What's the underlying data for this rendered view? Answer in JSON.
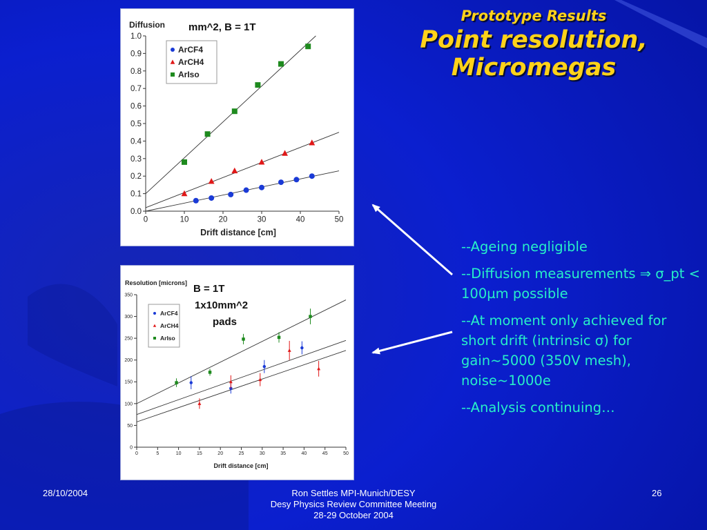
{
  "slide": {
    "title_line1": "Prototype Results",
    "title_line2": "Point resolution,",
    "title_line3": "Micromegas",
    "bullets": [
      "--Ageing negligible",
      "--Diffusion measurements ⇒ σ_pt < 100µm possible",
      "--At moment only achieved for short drift (intrinsic σ) for gain~5000 (350V mesh), noise~1000e",
      "--Analysis continuing…"
    ],
    "footer": {
      "date": "28/10/2004",
      "center_line1": "Ron Settles  MPI-Munich/DESY",
      "center_line2": "Desy Physics Review Committee Meeting",
      "center_line3": "28-29 October 2004",
      "page": "26"
    }
  },
  "colors": {
    "background": "#0a1ec8",
    "title": "#ffd21a",
    "bullet_text": "#27f0c8",
    "arrow": "#ffffff",
    "ArCF4": "#1a3ad6",
    "ArCH4": "#e01818",
    "ArIso": "#1e8a1e"
  },
  "chart_data": [
    {
      "type": "scatter",
      "ylabel": "Diffusion",
      "annotation": "mm^2, B = 1T",
      "xlabel": "Drift distance [cm]",
      "xlim": [
        0,
        50
      ],
      "ylim": [
        0,
        1.0
      ],
      "x_ticks": [
        "0",
        "10",
        "20",
        "30",
        "40",
        "50"
      ],
      "y_ticks": [
        "0.0",
        "0.1",
        "0.2",
        "0.3",
        "0.4",
        "0.5",
        "0.6",
        "0.7",
        "0.8",
        "0.9",
        "1.0"
      ],
      "grid": false,
      "legend_position": "top-left",
      "series": [
        {
          "name": "ArCF4",
          "marker": "circle",
          "points": [
            [
              13,
              0.06
            ],
            [
              17,
              0.075
            ],
            [
              22,
              0.095
            ],
            [
              26,
              0.12
            ],
            [
              30,
              0.135
            ],
            [
              35,
              0.165
            ],
            [
              39,
              0.18
            ],
            [
              43,
              0.2
            ]
          ],
          "fit": [
            [
              0,
              0.0
            ],
            [
              50,
              0.23
            ]
          ]
        },
        {
          "name": "ArCH4",
          "marker": "triangle",
          "points": [
            [
              10,
              0.1
            ],
            [
              17,
              0.17
            ],
            [
              23,
              0.23
            ],
            [
              30,
              0.28
            ],
            [
              36,
              0.33
            ],
            [
              43,
              0.39
            ]
          ],
          "fit": [
            [
              0,
              0.02
            ],
            [
              50,
              0.45
            ]
          ]
        },
        {
          "name": "ArIso",
          "marker": "square",
          "points": [
            [
              10,
              0.28
            ],
            [
              16,
              0.44
            ],
            [
              23,
              0.57
            ],
            [
              29,
              0.72
            ],
            [
              35,
              0.84
            ],
            [
              42,
              0.94
            ]
          ],
          "fit": [
            [
              0,
              0.1
            ],
            [
              44,
              1.0
            ]
          ]
        }
      ]
    },
    {
      "type": "scatter",
      "ylabel": "Resolution [microns]",
      "annotation_line1": "B = 1T",
      "annotation_line2": "1x10mm^2",
      "annotation_line3": "pads",
      "xlabel": "Drift distance [cm]",
      "xlim": [
        0,
        50
      ],
      "ylim": [
        0,
        350
      ],
      "x_ticks": [
        "0",
        "5",
        "10",
        "15",
        "20",
        "25",
        "30",
        "35",
        "40",
        "45",
        "50"
      ],
      "y_ticks": [
        "0",
        "50",
        "100",
        "150",
        "200",
        "250",
        "300",
        "350"
      ],
      "grid": false,
      "legend_position": "top-left",
      "series": [
        {
          "name": "ArCF4",
          "marker": "circle",
          "points": [
            [
              13,
              148,
              15
            ],
            [
              22.5,
              135,
              12
            ],
            [
              30.5,
              185,
              15
            ],
            [
              39.5,
              228,
              15
            ]
          ],
          "fit": [
            [
              0,
              58
            ],
            [
              50,
              222
            ]
          ]
        },
        {
          "name": "ArCH4",
          "marker": "triangle",
          "points": [
            [
              15,
              100,
              12
            ],
            [
              22.5,
              150,
              15
            ],
            [
              29.5,
              155,
              15
            ],
            [
              36.5,
              222,
              22
            ],
            [
              43.5,
              180,
              18
            ]
          ],
          "fit": [
            [
              0,
              75
            ],
            [
              50,
              245
            ]
          ]
        },
        {
          "name": "ArIso",
          "marker": "square",
          "points": [
            [
              9.5,
              148,
              10
            ],
            [
              17.5,
              172,
              8
            ],
            [
              25.5,
              248,
              12
            ],
            [
              34,
              252,
              12
            ],
            [
              41.5,
              300,
              18
            ]
          ],
          "fit": [
            [
              0,
              100
            ],
            [
              50,
              338
            ]
          ]
        }
      ]
    }
  ]
}
